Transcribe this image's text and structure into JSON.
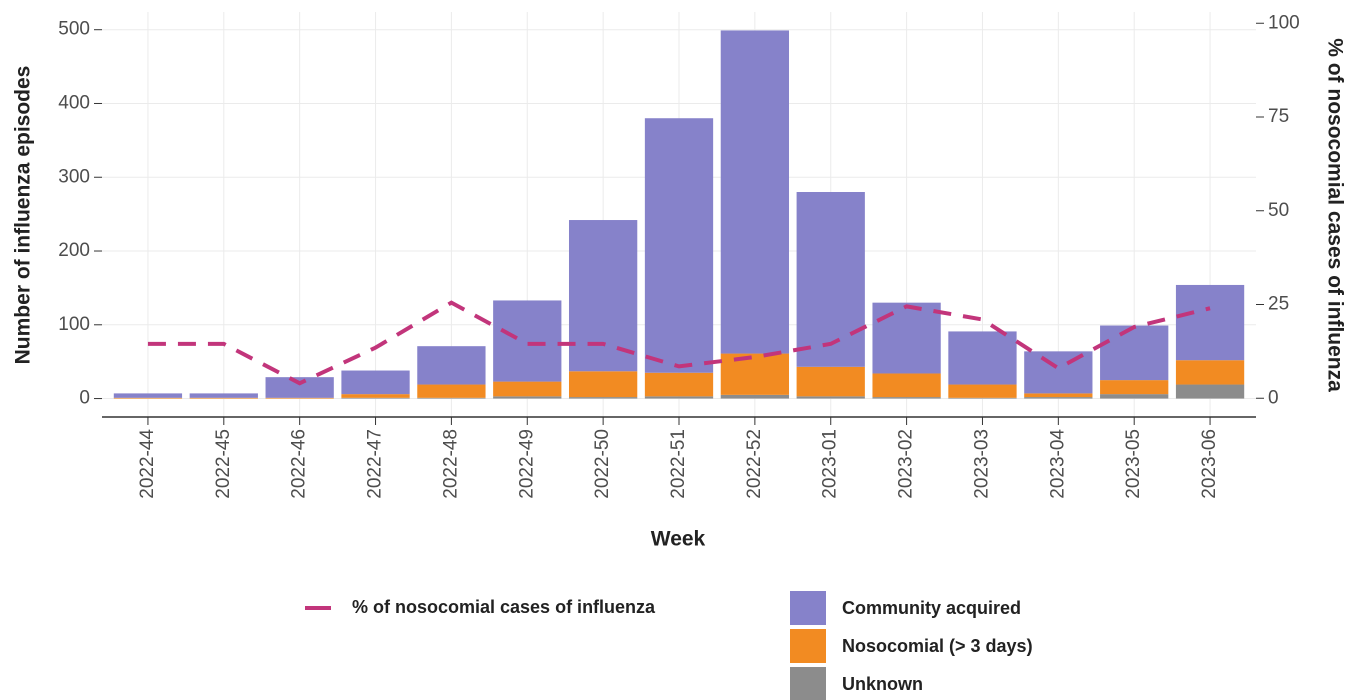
{
  "chart_data": {
    "type": "bar",
    "stacked": true,
    "x_label": "Week",
    "y_label": "Number of influenza episodes",
    "y2_label": "% of nosocomial cases of influenza",
    "categories": [
      "2022-44",
      "2022-45",
      "2022-46",
      "2022-47",
      "2022-48",
      "2022-49",
      "2022-50",
      "2022-51",
      "2022-52",
      "2023-01",
      "2023-02",
      "2023-03",
      "2023-04",
      "2023-05",
      "2023-06"
    ],
    "series": [
      {
        "name": "Community acquired",
        "color": "#8682ca",
        "values": [
          6,
          6,
          28,
          32,
          52,
          110,
          205,
          345,
          438,
          237,
          96,
          72,
          57,
          74,
          102
        ]
      },
      {
        "name": "Nosocomial (> 3 days)",
        "color": "#f28b22",
        "values": [
          1,
          1,
          1,
          5,
          18,
          20,
          35,
          32,
          56,
          40,
          32,
          18,
          5,
          19,
          33
        ]
      },
      {
        "name": "Unknown",
        "color": "#8c8c8c",
        "values": [
          0,
          0,
          0,
          1,
          1,
          3,
          2,
          3,
          5,
          3,
          2,
          1,
          2,
          6,
          19
        ]
      },
      {
        "name": "% of nosocomial cases of influenza",
        "type": "line",
        "dashed": true,
        "axis": "y2",
        "color": "#c2357b",
        "values": [
          14.5,
          14.5,
          4,
          13.5,
          25.5,
          14.5,
          14.5,
          8.5,
          11,
          14.5,
          24.5,
          21,
          8,
          19,
          24
        ]
      }
    ],
    "ylim": [
      -25,
      524
    ],
    "yticks": [
      0,
      100,
      200,
      300,
      400,
      500
    ],
    "y2lim": [
      -5,
      103
    ],
    "y2ticks": [
      0,
      25,
      50,
      75,
      100
    ],
    "grid": true
  }
}
